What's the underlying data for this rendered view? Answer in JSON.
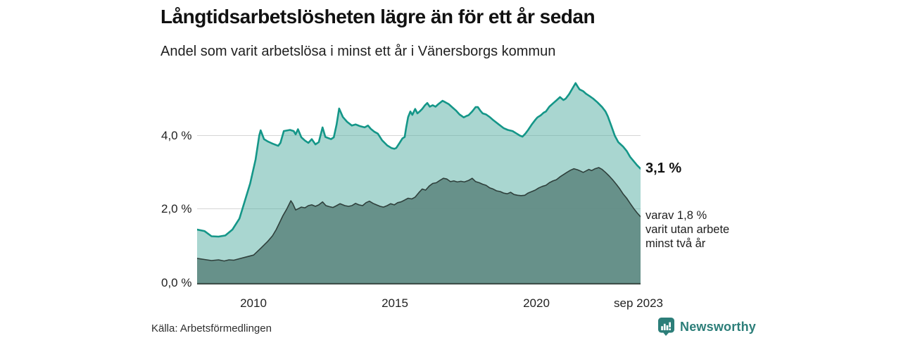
{
  "header": {
    "title": "Långtidsarbetslösheten lägre än för ett år sedan",
    "subtitle": "Andel som varit arbetslösa i minst ett år i Vänersborgs kommun"
  },
  "footer": {
    "source": "Källa: Arbetsförmedlingen",
    "brand": "Newsworthy",
    "brand_color": "#2c7e79",
    "brand_icon": "bar-chart-speech-bubble-icon"
  },
  "colors": {
    "total_line": "#149688",
    "total_fill": "rgba(83,173,161,0.5)",
    "twoyear_line": "#2f403c",
    "twoyear_fill": "rgba(95,137,130,0.9)",
    "gridline": "#d6d6d6",
    "axis": "#3f4e49"
  },
  "chart_data": {
    "type": "area",
    "title": "Långtidsarbetslösheten lägre än för ett år sedan",
    "subtitle": "Andel som varit arbetslösa i minst ett år i Vänersborgs kommun",
    "unit": "%",
    "x_domain": [
      2008.0,
      2023.7
    ],
    "y_domain": [
      0,
      5.6
    ],
    "grid": "horizontal",
    "legend_position": "end-of-line-labels",
    "y_ticks": [
      {
        "value": 4.0,
        "label": "4,0 %"
      },
      {
        "value": 2.0,
        "label": "2,0 %"
      },
      {
        "value": 0.0,
        "label": "0,0 %"
      }
    ],
    "x_ticks": [
      {
        "t": 2010.0,
        "label": "2010"
      },
      {
        "t": 2015.0,
        "label": "2015"
      },
      {
        "t": 2020.0,
        "label": "2020"
      },
      {
        "t": 2023.67,
        "label": "sep 2023"
      }
    ],
    "series": [
      {
        "name": "Andel som varit arbetslösa i minst ett år",
        "color": "#149688",
        "fill": "rgba(83,173,161,0.5)",
        "stroke_width": 2.6,
        "end_value": "3,1 %",
        "end_label": "3,1 %",
        "points": [
          [
            2008.0,
            1.45
          ],
          [
            2008.26,
            1.41
          ],
          [
            2008.51,
            1.27
          ],
          [
            2008.76,
            1.26
          ],
          [
            2009.0,
            1.29
          ],
          [
            2009.25,
            1.45
          ],
          [
            2009.5,
            1.75
          ],
          [
            2009.68,
            2.2
          ],
          [
            2009.88,
            2.7
          ],
          [
            2010.07,
            3.35
          ],
          [
            2010.2,
            4.0
          ],
          [
            2010.25,
            4.14
          ],
          [
            2010.37,
            3.9
          ],
          [
            2010.5,
            3.84
          ],
          [
            2010.67,
            3.78
          ],
          [
            2010.87,
            3.72
          ],
          [
            2010.95,
            3.8
          ],
          [
            2011.07,
            4.12
          ],
          [
            2011.29,
            4.15
          ],
          [
            2011.42,
            4.12
          ],
          [
            2011.49,
            4.03
          ],
          [
            2011.57,
            4.17
          ],
          [
            2011.69,
            3.95
          ],
          [
            2011.82,
            3.86
          ],
          [
            2011.94,
            3.8
          ],
          [
            2012.06,
            3.9
          ],
          [
            2012.19,
            3.76
          ],
          [
            2012.31,
            3.82
          ],
          [
            2012.44,
            4.22
          ],
          [
            2012.54,
            3.96
          ],
          [
            2012.74,
            3.9
          ],
          [
            2012.84,
            3.95
          ],
          [
            2012.94,
            4.3
          ],
          [
            2013.03,
            4.73
          ],
          [
            2013.16,
            4.5
          ],
          [
            2013.31,
            4.37
          ],
          [
            2013.48,
            4.27
          ],
          [
            2013.61,
            4.3
          ],
          [
            2013.78,
            4.25
          ],
          [
            2013.93,
            4.22
          ],
          [
            2014.05,
            4.27
          ],
          [
            2014.15,
            4.18
          ],
          [
            2014.28,
            4.1
          ],
          [
            2014.4,
            4.05
          ],
          [
            2014.55,
            3.87
          ],
          [
            2014.73,
            3.73
          ],
          [
            2014.88,
            3.66
          ],
          [
            2014.98,
            3.64
          ],
          [
            2015.05,
            3.66
          ],
          [
            2015.17,
            3.8
          ],
          [
            2015.27,
            3.92
          ],
          [
            2015.35,
            3.96
          ],
          [
            2015.4,
            4.2
          ],
          [
            2015.47,
            4.5
          ],
          [
            2015.55,
            4.65
          ],
          [
            2015.62,
            4.56
          ],
          [
            2015.72,
            4.72
          ],
          [
            2015.8,
            4.6
          ],
          [
            2015.88,
            4.65
          ],
          [
            2015.97,
            4.72
          ],
          [
            2016.07,
            4.82
          ],
          [
            2016.15,
            4.88
          ],
          [
            2016.24,
            4.78
          ],
          [
            2016.34,
            4.82
          ],
          [
            2016.44,
            4.78
          ],
          [
            2016.54,
            4.85
          ],
          [
            2016.69,
            4.94
          ],
          [
            2016.79,
            4.9
          ],
          [
            2016.91,
            4.85
          ],
          [
            2017.04,
            4.76
          ],
          [
            2017.16,
            4.68
          ],
          [
            2017.29,
            4.57
          ],
          [
            2017.44,
            4.49
          ],
          [
            2017.54,
            4.53
          ],
          [
            2017.61,
            4.55
          ],
          [
            2017.74,
            4.65
          ],
          [
            2017.86,
            4.77
          ],
          [
            2017.94,
            4.77
          ],
          [
            2018.03,
            4.67
          ],
          [
            2018.11,
            4.6
          ],
          [
            2018.23,
            4.57
          ],
          [
            2018.36,
            4.5
          ],
          [
            2018.48,
            4.42
          ],
          [
            2018.68,
            4.3
          ],
          [
            2018.85,
            4.2
          ],
          [
            2019.0,
            4.15
          ],
          [
            2019.17,
            4.12
          ],
          [
            2019.32,
            4.05
          ],
          [
            2019.42,
            4.0
          ],
          [
            2019.52,
            3.97
          ],
          [
            2019.62,
            4.05
          ],
          [
            2019.72,
            4.15
          ],
          [
            2019.85,
            4.3
          ],
          [
            2019.97,
            4.42
          ],
          [
            2020.05,
            4.49
          ],
          [
            2020.17,
            4.55
          ],
          [
            2020.27,
            4.62
          ],
          [
            2020.35,
            4.65
          ],
          [
            2020.47,
            4.78
          ],
          [
            2020.6,
            4.87
          ],
          [
            2020.72,
            4.95
          ],
          [
            2020.85,
            5.04
          ],
          [
            2020.97,
            4.96
          ],
          [
            2021.05,
            5.0
          ],
          [
            2021.17,
            5.12
          ],
          [
            2021.27,
            5.25
          ],
          [
            2021.4,
            5.42
          ],
          [
            2021.47,
            5.33
          ],
          [
            2021.54,
            5.25
          ],
          [
            2021.67,
            5.2
          ],
          [
            2021.77,
            5.13
          ],
          [
            2021.89,
            5.07
          ],
          [
            2022.02,
            5.0
          ],
          [
            2022.17,
            4.9
          ],
          [
            2022.34,
            4.77
          ],
          [
            2022.46,
            4.65
          ],
          [
            2022.54,
            4.52
          ],
          [
            2022.66,
            4.27
          ],
          [
            2022.79,
            3.99
          ],
          [
            2022.91,
            3.82
          ],
          [
            2023.01,
            3.75
          ],
          [
            2023.08,
            3.7
          ],
          [
            2023.21,
            3.58
          ],
          [
            2023.33,
            3.42
          ],
          [
            2023.46,
            3.3
          ],
          [
            2023.58,
            3.19
          ],
          [
            2023.7,
            3.1
          ]
        ]
      },
      {
        "name": "varav varit utan arbete minst två år",
        "color": "#2f403c",
        "fill": "rgba(95,137,130,0.9)",
        "stroke_width": 1.6,
        "end_value": "1,8 %",
        "end_label": "varav 1,8 %\nvarit utan arbete\nminst två år",
        "points": [
          [
            2008.0,
            0.67
          ],
          [
            2008.26,
            0.64
          ],
          [
            2008.51,
            0.61
          ],
          [
            2008.76,
            0.63
          ],
          [
            2008.96,
            0.6
          ],
          [
            2009.13,
            0.63
          ],
          [
            2009.3,
            0.62
          ],
          [
            2009.5,
            0.66
          ],
          [
            2009.75,
            0.71
          ],
          [
            2010.0,
            0.76
          ],
          [
            2010.25,
            0.94
          ],
          [
            2010.5,
            1.13
          ],
          [
            2010.67,
            1.28
          ],
          [
            2010.8,
            1.45
          ],
          [
            2010.92,
            1.64
          ],
          [
            2011.04,
            1.83
          ],
          [
            2011.17,
            2.0
          ],
          [
            2011.32,
            2.23
          ],
          [
            2011.39,
            2.15
          ],
          [
            2011.49,
            1.98
          ],
          [
            2011.59,
            2.02
          ],
          [
            2011.69,
            2.06
          ],
          [
            2011.82,
            2.04
          ],
          [
            2011.94,
            2.1
          ],
          [
            2012.06,
            2.12
          ],
          [
            2012.19,
            2.08
          ],
          [
            2012.31,
            2.12
          ],
          [
            2012.44,
            2.2
          ],
          [
            2012.56,
            2.1
          ],
          [
            2012.69,
            2.07
          ],
          [
            2012.81,
            2.05
          ],
          [
            2012.94,
            2.1
          ],
          [
            2013.06,
            2.15
          ],
          [
            2013.23,
            2.1
          ],
          [
            2013.36,
            2.08
          ],
          [
            2013.48,
            2.1
          ],
          [
            2013.61,
            2.16
          ],
          [
            2013.73,
            2.12
          ],
          [
            2013.86,
            2.1
          ],
          [
            2013.98,
            2.18
          ],
          [
            2014.1,
            2.22
          ],
          [
            2014.23,
            2.16
          ],
          [
            2014.35,
            2.12
          ],
          [
            2014.48,
            2.08
          ],
          [
            2014.6,
            2.06
          ],
          [
            2014.73,
            2.1
          ],
          [
            2014.85,
            2.15
          ],
          [
            2014.98,
            2.12
          ],
          [
            2015.1,
            2.18
          ],
          [
            2015.22,
            2.2
          ],
          [
            2015.35,
            2.25
          ],
          [
            2015.47,
            2.3
          ],
          [
            2015.6,
            2.28
          ],
          [
            2015.72,
            2.33
          ],
          [
            2015.85,
            2.45
          ],
          [
            2015.97,
            2.55
          ],
          [
            2016.09,
            2.52
          ],
          [
            2016.22,
            2.63
          ],
          [
            2016.34,
            2.7
          ],
          [
            2016.47,
            2.72
          ],
          [
            2016.59,
            2.78
          ],
          [
            2016.72,
            2.84
          ],
          [
            2016.84,
            2.82
          ],
          [
            2016.97,
            2.75
          ],
          [
            2017.09,
            2.77
          ],
          [
            2017.21,
            2.74
          ],
          [
            2017.34,
            2.76
          ],
          [
            2017.46,
            2.74
          ],
          [
            2017.61,
            2.78
          ],
          [
            2017.74,
            2.84
          ],
          [
            2017.86,
            2.75
          ],
          [
            2017.99,
            2.72
          ],
          [
            2018.11,
            2.68
          ],
          [
            2018.23,
            2.65
          ],
          [
            2018.36,
            2.58
          ],
          [
            2018.48,
            2.55
          ],
          [
            2018.6,
            2.5
          ],
          [
            2018.73,
            2.48
          ],
          [
            2018.85,
            2.44
          ],
          [
            2018.98,
            2.42
          ],
          [
            2019.1,
            2.46
          ],
          [
            2019.22,
            2.4
          ],
          [
            2019.35,
            2.38
          ],
          [
            2019.47,
            2.37
          ],
          [
            2019.6,
            2.38
          ],
          [
            2019.72,
            2.44
          ],
          [
            2019.85,
            2.48
          ],
          [
            2019.97,
            2.52
          ],
          [
            2020.1,
            2.58
          ],
          [
            2020.22,
            2.62
          ],
          [
            2020.35,
            2.65
          ],
          [
            2020.47,
            2.72
          ],
          [
            2020.6,
            2.77
          ],
          [
            2020.72,
            2.8
          ],
          [
            2020.85,
            2.88
          ],
          [
            2020.97,
            2.94
          ],
          [
            2021.09,
            3.0
          ],
          [
            2021.22,
            3.06
          ],
          [
            2021.34,
            3.1
          ],
          [
            2021.47,
            3.07
          ],
          [
            2021.59,
            3.03
          ],
          [
            2021.67,
            3.0
          ],
          [
            2021.77,
            3.04
          ],
          [
            2021.87,
            3.08
          ],
          [
            2021.97,
            3.05
          ],
          [
            2022.09,
            3.1
          ],
          [
            2022.22,
            3.13
          ],
          [
            2022.34,
            3.08
          ],
          [
            2022.46,
            3.0
          ],
          [
            2022.59,
            2.9
          ],
          [
            2022.71,
            2.8
          ],
          [
            2022.84,
            2.68
          ],
          [
            2022.96,
            2.56
          ],
          [
            2023.08,
            2.42
          ],
          [
            2023.21,
            2.3
          ],
          [
            2023.33,
            2.16
          ],
          [
            2023.46,
            2.02
          ],
          [
            2023.58,
            1.9
          ],
          [
            2023.7,
            1.8
          ]
        ]
      }
    ]
  }
}
